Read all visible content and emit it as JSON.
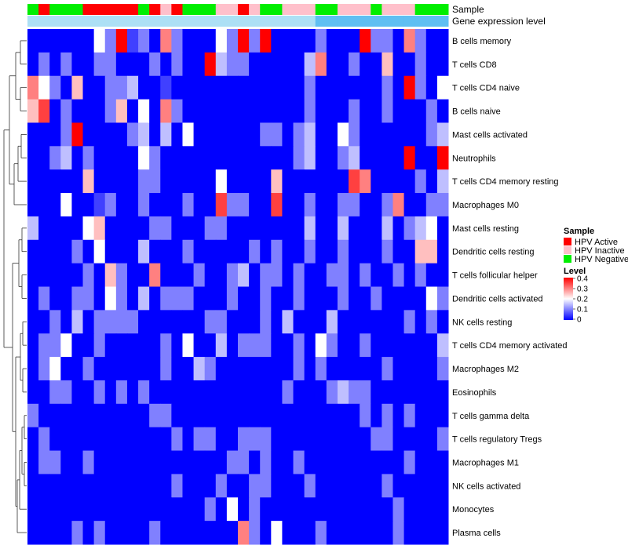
{
  "chart_data": {
    "type": "heatmap",
    "title": "",
    "annotation_rows": [
      "Sample",
      "Gene expression level"
    ],
    "rows": [
      "B cells memory",
      "T cells CD8",
      "T cells CD4 naive",
      "B cells naive",
      "Mast cells activated",
      "Neutrophils",
      "T cells CD4 memory resting",
      "Macrophages M0",
      "Mast cells resting",
      "Dendritic cells resting",
      "T cells follicular helper",
      "Dendritic cells activated",
      "NK cells resting",
      "T cells CD4 memory activated",
      "Macrophages M2",
      "Eosinophils",
      "T cells gamma delta",
      "T cells regulatory  Tregs",
      "Macrophages M1",
      "NK cells activated",
      "Monocytes",
      "Plasma cells"
    ],
    "sample_groups": [
      "Neg",
      "Act",
      "Neg",
      "Neg",
      "Neg",
      "Act",
      "Act",
      "Act",
      "Act",
      "Act",
      "Neg",
      "Act",
      "Ina",
      "Act",
      "Neg",
      "Neg",
      "Neg",
      "Ina",
      "Ina",
      "Act",
      "Ina",
      "Neg",
      "Neg",
      "Ina",
      "Ina",
      "Ina",
      "Neg",
      "Neg",
      "Ina",
      "Ina",
      "Ina",
      "Neg",
      "Ina",
      "Ina",
      "Ina",
      "Neg",
      "Neg",
      "Neg"
    ],
    "expression_level": [
      0.35,
      0.35,
      0.35,
      0.35,
      0.35,
      0.35,
      0.35,
      0.35,
      0.35,
      0.35,
      0.35,
      0.35,
      0.35,
      0.35,
      0.35,
      0.35,
      0.35,
      0.35,
      0.35,
      0.35,
      0.35,
      0.35,
      0.35,
      0.35,
      0.35,
      0.35,
      0.7,
      0.7,
      0.7,
      0.7,
      0.7,
      0.7,
      0.7,
      0.7,
      0.7,
      0.7,
      0.7,
      0.7
    ],
    "values": [
      [
        0,
        0,
        0,
        0,
        0,
        0,
        0.2,
        0.1,
        0.4,
        0.05,
        0.1,
        0,
        0.3,
        0.1,
        0,
        0,
        0,
        0.2,
        0.1,
        0.4,
        0.1,
        0.4,
        0,
        0,
        0,
        0,
        0.1,
        0,
        0,
        0,
        0.4,
        0.1,
        0.1,
        0,
        0.3,
        0.1,
        0,
        0
      ],
      [
        0,
        0.1,
        0,
        0.1,
        0,
        0,
        0.1,
        0.1,
        0,
        0,
        0,
        0.1,
        0,
        0.1,
        0,
        0,
        0.4,
        0.15,
        0.1,
        0.1,
        0,
        0,
        0,
        0,
        0,
        0.15,
        0.3,
        0,
        0,
        0.1,
        0,
        0,
        0.25,
        0,
        0,
        0.1,
        0,
        0
      ],
      [
        0.3,
        0.2,
        0.1,
        0,
        0.25,
        0,
        0,
        0.1,
        0.1,
        0.15,
        0,
        0,
        0.05,
        0,
        0,
        0,
        0,
        0,
        0,
        0,
        0,
        0,
        0,
        0,
        0,
        0.1,
        0,
        0,
        0,
        0,
        0,
        0,
        0.1,
        0,
        0.4,
        0.1,
        0,
        0.2
      ],
      [
        0.25,
        0.35,
        0,
        0.1,
        0,
        0,
        0,
        0.1,
        0.25,
        0,
        0.2,
        0,
        0.3,
        0.1,
        0,
        0,
        0,
        0,
        0,
        0,
        0,
        0,
        0,
        0,
        0,
        0.1,
        0,
        0,
        0,
        0.1,
        0,
        0,
        0.1,
        0,
        0,
        0,
        0.1,
        0
      ],
      [
        0,
        0,
        0,
        0.1,
        0.4,
        0,
        0,
        0,
        0,
        0.1,
        0.15,
        0,
        0.15,
        0,
        0.2,
        0,
        0,
        0,
        0,
        0,
        0,
        0.1,
        0.1,
        0,
        0.1,
        0.15,
        0,
        0,
        0.2,
        0.1,
        0,
        0,
        0,
        0,
        0,
        0,
        0.1,
        0.15
      ],
      [
        0,
        0,
        0.1,
        0.15,
        0,
        0.1,
        0,
        0,
        0,
        0,
        0.2,
        0.1,
        0,
        0,
        0,
        0,
        0,
        0,
        0,
        0,
        0,
        0,
        0,
        0,
        0.1,
        0.15,
        0,
        0,
        0.1,
        0.15,
        0,
        0,
        0,
        0,
        0.4,
        0,
        0,
        0.4
      ],
      [
        0,
        0,
        0,
        0,
        0,
        0.25,
        0,
        0,
        0,
        0,
        0.1,
        0.1,
        0,
        0,
        0,
        0,
        0,
        0.2,
        0,
        0,
        0,
        0,
        0.25,
        0,
        0,
        0,
        0,
        0,
        0,
        0.35,
        0.3,
        0,
        0,
        0,
        0,
        0.1,
        0,
        0.15
      ],
      [
        0,
        0,
        0,
        0.2,
        0,
        0,
        0.05,
        0.1,
        0,
        0,
        0.1,
        0,
        0,
        0,
        0.1,
        0,
        0,
        0.35,
        0.1,
        0.1,
        0,
        0,
        0.35,
        0,
        0,
        0.1,
        0,
        0,
        0.1,
        0.1,
        0,
        0,
        0.1,
        0.3,
        0,
        0,
        0.1,
        0.1
      ],
      [
        0.15,
        0,
        0,
        0,
        0,
        0.2,
        0.25,
        0,
        0,
        0,
        0,
        0.1,
        0.1,
        0,
        0,
        0,
        0.1,
        0.1,
        0,
        0,
        0,
        0,
        0,
        0,
        0,
        0.15,
        0,
        0,
        0.15,
        0,
        0,
        0,
        0.15,
        0,
        0.1,
        0.15,
        0.2,
        0
      ],
      [
        0,
        0,
        0,
        0,
        0.1,
        0,
        0.2,
        0,
        0,
        0,
        0.15,
        0,
        0,
        0,
        0.1,
        0,
        0,
        0,
        0,
        0,
        0.1,
        0,
        0.1,
        0,
        0,
        0.1,
        0,
        0,
        0.1,
        0,
        0,
        0,
        0.1,
        0,
        0,
        0.25,
        0.25,
        0
      ],
      [
        0,
        0,
        0,
        0,
        0,
        0.1,
        0,
        0.25,
        0.1,
        0,
        0,
        0.3,
        0,
        0,
        0,
        0.1,
        0,
        0,
        0.1,
        0.15,
        0,
        0.1,
        0.1,
        0,
        0.1,
        0,
        0,
        0.1,
        0.1,
        0,
        0.1,
        0,
        0,
        0.1,
        0,
        0.1,
        0,
        0
      ],
      [
        0,
        0.1,
        0,
        0,
        0.1,
        0.1,
        0,
        0.2,
        0.1,
        0,
        0.15,
        0,
        0.1,
        0.1,
        0.1,
        0,
        0,
        0,
        0.1,
        0,
        0,
        0.1,
        0,
        0,
        0.1,
        0,
        0,
        0,
        0.1,
        0,
        0,
        0.1,
        0,
        0,
        0,
        0,
        0.2,
        0.1
      ],
      [
        0,
        0,
        0.1,
        0,
        0.15,
        0,
        0.1,
        0.1,
        0.1,
        0.1,
        0,
        0,
        0,
        0,
        0,
        0,
        0.1,
        0.1,
        0,
        0,
        0,
        0.1,
        0,
        0.15,
        0,
        0,
        0,
        0.15,
        0,
        0,
        0,
        0,
        0,
        0,
        0.1,
        0,
        0.1,
        0
      ],
      [
        0,
        0.1,
        0.1,
        0.2,
        0,
        0,
        0.1,
        0,
        0,
        0,
        0,
        0,
        0.1,
        0,
        0.2,
        0,
        0,
        0.15,
        0,
        0.1,
        0.1,
        0.1,
        0,
        0,
        0.1,
        0,
        0.2,
        0.1,
        0,
        0,
        0.1,
        0,
        0,
        0,
        0,
        0,
        0,
        0.15
      ],
      [
        0,
        0.1,
        0.2,
        0,
        0,
        0.1,
        0,
        0,
        0,
        0,
        0,
        0,
        0.1,
        0,
        0,
        0.15,
        0.1,
        0,
        0,
        0,
        0,
        0,
        0,
        0,
        0.1,
        0,
        0.1,
        0,
        0,
        0,
        0,
        0,
        0.1,
        0,
        0,
        0,
        0,
        0.1
      ],
      [
        0,
        0,
        0.1,
        0.1,
        0,
        0,
        0.1,
        0,
        0.1,
        0,
        0.1,
        0,
        0,
        0,
        0,
        0,
        0,
        0,
        0,
        0,
        0,
        0,
        0,
        0.1,
        0,
        0,
        0,
        0.1,
        0.15,
        0.1,
        0.1,
        0,
        0,
        0,
        0,
        0,
        0,
        0
      ],
      [
        0.1,
        0,
        0,
        0,
        0,
        0,
        0,
        0,
        0,
        0,
        0,
        0.1,
        0.1,
        0,
        0,
        0,
        0,
        0,
        0,
        0,
        0,
        0,
        0,
        0,
        0,
        0,
        0,
        0,
        0,
        0,
        0.1,
        0,
        0.1,
        0,
        0.1,
        0,
        0,
        0
      ],
      [
        0,
        0.1,
        0,
        0,
        0,
        0,
        0,
        0,
        0,
        0,
        0,
        0,
        0,
        0.1,
        0,
        0.1,
        0.1,
        0,
        0,
        0.1,
        0.1,
        0.1,
        0,
        0,
        0,
        0,
        0,
        0,
        0,
        0,
        0,
        0.1,
        0.1,
        0,
        0,
        0,
        0,
        0.1
      ],
      [
        0,
        0.1,
        0.1,
        0,
        0,
        0.1,
        0,
        0,
        0,
        0,
        0,
        0,
        0,
        0,
        0,
        0,
        0,
        0,
        0.1,
        0.1,
        0,
        0.1,
        0,
        0,
        0.1,
        0,
        0,
        0,
        0,
        0,
        0,
        0,
        0,
        0,
        0.1,
        0,
        0,
        0
      ],
      [
        0,
        0,
        0,
        0,
        0,
        0,
        0,
        0,
        0,
        0,
        0,
        0,
        0,
        0.1,
        0,
        0,
        0,
        0.1,
        0,
        0,
        0.1,
        0.1,
        0,
        0,
        0,
        0.1,
        0,
        0,
        0,
        0,
        0,
        0,
        0.1,
        0,
        0,
        0,
        0,
        0
      ],
      [
        0,
        0,
        0,
        0,
        0,
        0,
        0,
        0,
        0,
        0,
        0,
        0,
        0,
        0,
        0,
        0,
        0.1,
        0,
        0.2,
        0,
        0.1,
        0,
        0,
        0,
        0,
        0,
        0,
        0,
        0,
        0,
        0,
        0,
        0,
        0.1,
        0,
        0,
        0,
        0
      ],
      [
        0,
        0,
        0,
        0,
        0.1,
        0,
        0.1,
        0,
        0,
        0,
        0,
        0.1,
        0,
        0,
        0,
        0,
        0,
        0,
        0,
        0.3,
        0.1,
        0,
        0.2,
        0,
        0,
        0,
        0.1,
        0,
        0,
        0,
        0,
        0,
        0,
        0.1,
        0,
        0,
        0,
        0
      ]
    ],
    "legend": {
      "sample_title": "Sample",
      "sample_entries": [
        {
          "key": "Act",
          "label": "HPV Active",
          "color": "#ff0000"
        },
        {
          "key": "Ina",
          "label": "HPV Inactive",
          "color": "#ffc0cb"
        },
        {
          "key": "Neg",
          "label": "HPV Negative",
          "color": "#00ee00"
        }
      ],
      "level_title": "Level",
      "level_ticks": [
        "0.4",
        "0.3",
        "0.2",
        "0.1",
        "0"
      ],
      "level_range": [
        0,
        0.4
      ]
    },
    "colors": {
      "low": "#0000ff",
      "mid": "#ffffff",
      "high": "#ff0000",
      "expr_low": "#ade0f5",
      "expr_high": "#5fbff2"
    }
  }
}
